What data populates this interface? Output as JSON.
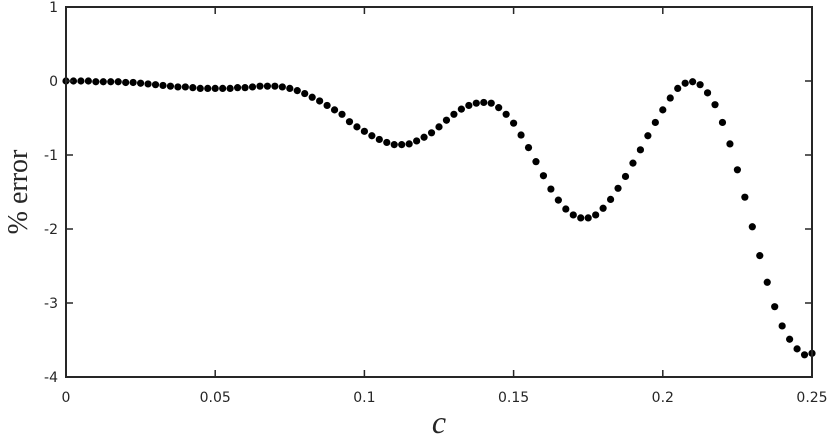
{
  "chart_data": {
    "type": "scatter",
    "title": "",
    "xlabel": "c",
    "ylabel": "% error",
    "xlim": [
      0,
      0.25
    ],
    "ylim": [
      -4,
      1
    ],
    "xticks": [
      0,
      0.05,
      0.1,
      0.15,
      0.2,
      0.25
    ],
    "xtick_labels": [
      "0",
      "0.05",
      "0.1",
      "0.15",
      "0.2",
      "0.25"
    ],
    "yticks": [
      1,
      0,
      -1,
      -2,
      -3,
      -4
    ],
    "ytick_labels": [
      "1",
      "0",
      "-1",
      "-2",
      "-3",
      "-4"
    ],
    "grid": false,
    "marker_color": "#000000",
    "series": [
      {
        "x": [
          0.0,
          0.0025,
          0.005,
          0.0075,
          0.01,
          0.0125,
          0.015,
          0.0175,
          0.02,
          0.0225,
          0.025,
          0.0275,
          0.03,
          0.0325,
          0.035,
          0.0375,
          0.04,
          0.0425,
          0.045,
          0.0475,
          0.05,
          0.0525,
          0.055,
          0.0575,
          0.06,
          0.0625,
          0.065,
          0.0675,
          0.07,
          0.0725,
          0.075,
          0.0775,
          0.08,
          0.0825,
          0.085,
          0.0875,
          0.09,
          0.0925,
          0.095,
          0.0975,
          0.1,
          0.1025,
          0.105,
          0.1075,
          0.11,
          0.1125,
          0.115,
          0.1175,
          0.12,
          0.1225,
          0.125,
          0.1275,
          0.13,
          0.1325,
          0.135,
          0.1375,
          0.14,
          0.1425,
          0.145,
          0.1475,
          0.15,
          0.1525,
          0.155,
          0.1575,
          0.16,
          0.1625,
          0.165,
          0.1675,
          0.17,
          0.1725,
          0.175,
          0.1775,
          0.18,
          0.1825,
          0.185,
          0.1875,
          0.19,
          0.1925,
          0.195,
          0.1975,
          0.2,
          0.2025,
          0.205,
          0.2075,
          0.21,
          0.2125,
          0.215,
          0.2175,
          0.22,
          0.2225,
          0.225,
          0.2275,
          0.23,
          0.2325,
          0.235,
          0.2375,
          0.24,
          0.2425,
          0.245,
          0.2475,
          0.25
        ],
        "y": [
          0.0,
          0.0,
          0.0,
          0.0,
          -0.01,
          -0.01,
          -0.01,
          -0.01,
          -0.02,
          -0.02,
          -0.03,
          -0.04,
          -0.05,
          -0.06,
          -0.07,
          -0.08,
          -0.08,
          -0.09,
          -0.1,
          -0.1,
          -0.1,
          -0.1,
          -0.1,
          -0.09,
          -0.09,
          -0.08,
          -0.07,
          -0.07,
          -0.07,
          -0.08,
          -0.1,
          -0.13,
          -0.17,
          -0.22,
          -0.27,
          -0.33,
          -0.39,
          -0.45,
          -0.55,
          -0.62,
          -0.68,
          -0.74,
          -0.79,
          -0.83,
          -0.86,
          -0.86,
          -0.85,
          -0.81,
          -0.76,
          -0.7,
          -0.62,
          -0.53,
          -0.45,
          -0.38,
          -0.33,
          -0.3,
          -0.29,
          -0.3,
          -0.36,
          -0.45,
          -0.57,
          -0.73,
          -0.9,
          -1.09,
          -1.28,
          -1.46,
          -1.61,
          -1.73,
          -1.81,
          -1.85,
          -1.85,
          -1.81,
          -1.72,
          -1.6,
          -1.45,
          -1.29,
          -1.11,
          -0.93,
          -0.74,
          -0.56,
          -0.39,
          -0.23,
          -0.1,
          -0.03,
          -0.01,
          -0.05,
          -0.16,
          -0.32,
          -0.56,
          -0.85,
          -1.2,
          -1.57,
          -1.97,
          -2.36,
          -2.72,
          -3.05,
          -3.31,
          -3.49,
          -3.62,
          -3.7,
          -3.68
        ]
      }
    ]
  }
}
